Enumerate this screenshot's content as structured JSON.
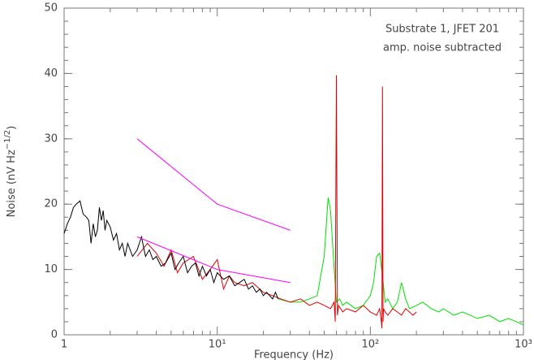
{
  "chart_data": {
    "type": "line",
    "annotations": [
      "Substrate 1, JFET 201",
      "amp. noise subtracted"
    ],
    "x_label": "Frequency (Hz)",
    "y_label": {
      "text": "Noise (nV Hz",
      "sup": "−1/2",
      "end": ")"
    },
    "x_log": true,
    "xlim": [
      1,
      1000
    ],
    "xticks": [
      1,
      {
        "value": 10,
        "label": "10¹"
      },
      {
        "value": 100,
        "label": "10²"
      },
      {
        "value": 1000,
        "label": "10³"
      }
    ],
    "ylim": [
      0,
      50
    ],
    "yticks": [
      0,
      10,
      20,
      30,
      40,
      50
    ],
    "series": [
      {
        "color": "#00e000",
        "x": [
          25,
          30,
          35,
          40,
          45,
          50,
          53,
          55,
          57,
          60,
          63,
          66,
          70,
          80,
          90,
          100,
          105,
          110,
          115,
          120,
          125,
          130,
          140,
          150,
          160,
          170,
          180,
          200,
          220,
          250,
          280,
          300,
          350,
          400,
          450,
          500,
          600,
          700,
          800,
          900,
          1000
        ],
        "values": [
          5.5,
          5,
          5,
          5.5,
          6,
          12,
          21,
          19,
          13,
          5,
          5.5,
          4.5,
          5,
          4,
          4.5,
          6,
          8,
          12,
          12.5,
          9,
          5,
          5.5,
          4,
          5,
          8,
          5.5,
          4,
          4.5,
          5,
          4,
          3.5,
          4,
          3,
          3.5,
          3,
          2.5,
          3,
          2,
          2.5,
          2,
          1.5
        ]
      },
      {
        "color": "#e00000",
        "x": [
          3,
          3.5,
          4,
          4.5,
          5,
          5.5,
          6,
          7,
          8,
          9,
          10,
          11,
          12,
          13,
          15,
          17,
          20,
          23,
          26,
          30,
          35,
          40,
          45,
          50,
          55,
          58,
          59,
          60,
          61,
          62,
          66,
          70,
          80,
          90,
          100,
          110,
          115,
          118,
          119,
          120,
          121,
          122,
          125,
          130,
          140,
          150,
          160,
          170,
          180,
          190,
          200
        ],
        "values": [
          12,
          14,
          12.5,
          10.5,
          13,
          9.5,
          11,
          12,
          8.5,
          10,
          11.5,
          7,
          9,
          8,
          7.5,
          8,
          6.5,
          6,
          5.5,
          5,
          5.5,
          4.5,
          5,
          4.5,
          4,
          5,
          2,
          39.7,
          3,
          4.5,
          3.5,
          4,
          3.5,
          4.5,
          3.5,
          3,
          4,
          2,
          1,
          38,
          2,
          4,
          3.5,
          3,
          4,
          3.5,
          3,
          4,
          3.5,
          3,
          3.5
        ]
      },
      {
        "color": "#000000",
        "x": [
          1,
          1.05,
          1.1,
          1.15,
          1.2,
          1.27,
          1.33,
          1.4,
          1.45,
          1.5,
          1.55,
          1.6,
          1.65,
          1.7,
          1.75,
          1.8,
          1.85,
          1.9,
          2,
          2.1,
          2.2,
          2.3,
          2.4,
          2.5,
          2.6,
          2.8,
          3,
          3.2,
          3.4,
          3.6,
          3.8,
          4,
          4.3,
          4.6,
          5,
          5.3,
          5.6,
          6,
          6.4,
          6.8,
          7.2,
          7.6,
          8,
          8.5,
          9,
          9.5,
          10,
          11,
          12,
          13,
          14,
          15,
          16,
          17,
          18,
          19,
          20,
          21,
          22,
          23,
          24,
          25
        ],
        "values": [
          15.5,
          17,
          18,
          19.5,
          20,
          20.5,
          18.5,
          18,
          17.5,
          14,
          17,
          15,
          16,
          19.5,
          17.5,
          19,
          16,
          17.5,
          16.5,
          14.5,
          15.5,
          13,
          14,
          12,
          14,
          12,
          13,
          15,
          12,
          13,
          11.5,
          12,
          10.5,
          11,
          12.5,
          10,
          11,
          12,
          9.5,
          10.5,
          11,
          9,
          10.5,
          9,
          10,
          8,
          9.5,
          8.5,
          9,
          7.5,
          8,
          8.5,
          7,
          7.5,
          6.5,
          7,
          6,
          6.5,
          6,
          5.5,
          6.5,
          5.5
        ]
      },
      {
        "color": "#ff00ff",
        "x": [
          3,
          10,
          30
        ],
        "values": [
          30,
          20,
          16
        ]
      },
      {
        "color": "#ff00ff",
        "x": [
          3,
          10,
          30
        ],
        "values": [
          15,
          10,
          8
        ]
      }
    ]
  }
}
